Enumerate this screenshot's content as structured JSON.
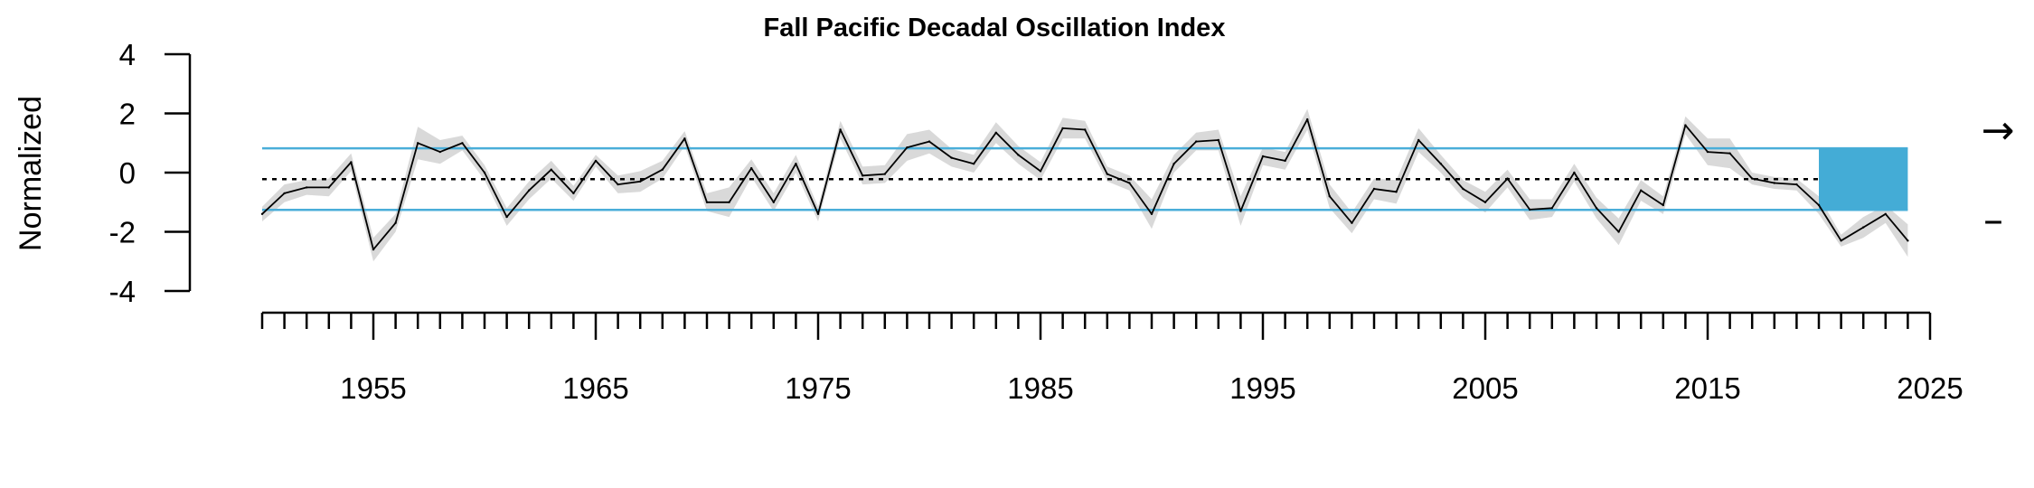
{
  "chart_data": {
    "type": "line",
    "title": "Fall Pacific Decadal Oscillation Index",
    "ylabel": "Normalized",
    "xlabel": "",
    "xlim": [
      1950,
      2025
    ],
    "ylim": [
      -4,
      4
    ],
    "y_ticks": [
      4,
      2,
      0,
      -2,
      -4
    ],
    "x_tick_labels": [
      1955,
      1965,
      1975,
      1985,
      1995,
      2005,
      2015,
      2025
    ],
    "mean": -0.22,
    "upper_sd": 0.82,
    "lower_sd": -1.26,
    "recent_period": [
      2020,
      2024
    ],
    "trend_symbol": "→",
    "mean_symbol": "–",
    "colors": {
      "line": "#000000",
      "band": "#d9d9d9",
      "sd_lines": "#4aaed9",
      "recent": "#44acd6",
      "mean_line": "#000000"
    },
    "series": [
      {
        "x": [
          1950,
          1951,
          1952,
          1953,
          1954,
          1955,
          1956,
          1957,
          1958,
          1959,
          1960,
          1961,
          1962,
          1963,
          1964,
          1965,
          1966,
          1967,
          1968,
          1969,
          1970,
          1971,
          1972,
          1973,
          1974,
          1975,
          1976,
          1977,
          1978,
          1979,
          1980,
          1981,
          1982,
          1983,
          1984,
          1985,
          1986,
          1987,
          1988,
          1989,
          1990,
          1991,
          1992,
          1993,
          1994,
          1995,
          1996,
          1997,
          1998,
          1999,
          2000,
          2001,
          2002,
          2003,
          2004,
          2005,
          2006,
          2007,
          2008,
          2009,
          2010,
          2011,
          2012,
          2013,
          2014,
          2015,
          2016,
          2017,
          2018,
          2019,
          2020,
          2021,
          2022,
          2023,
          2024
        ],
        "values": [
          -1.4,
          -0.7,
          -0.5,
          -0.5,
          0.35,
          -2.6,
          -1.7,
          1.0,
          0.7,
          1.0,
          0.0,
          -1.5,
          -0.6,
          0.1,
          -0.7,
          0.4,
          -0.4,
          -0.3,
          0.1,
          1.15,
          -1.0,
          -1.0,
          0.15,
          -1.0,
          0.3,
          -1.4,
          1.45,
          -0.1,
          -0.05,
          0.85,
          1.05,
          0.5,
          0.3,
          1.35,
          0.6,
          0.05,
          1.5,
          1.45,
          -0.05,
          -0.35,
          -1.4,
          0.3,
          1.05,
          1.1,
          -1.3,
          0.55,
          0.4,
          1.8,
          -0.8,
          -1.7,
          -0.55,
          -0.65,
          1.1,
          0.3,
          -0.55,
          -1.0,
          -0.2,
          -1.25,
          -1.2,
          0.0,
          -1.2,
          -2.0,
          -0.6,
          -1.1,
          1.6,
          0.7,
          0.65,
          -0.2,
          -0.35,
          -0.4,
          -1.1,
          -2.3,
          -1.85,
          -1.4,
          -2.3
        ],
        "errors": [
          0.25,
          0.3,
          0.25,
          0.3,
          0.3,
          0.4,
          0.3,
          0.55,
          0.4,
          0.25,
          0.25,
          0.3,
          0.3,
          0.3,
          0.25,
          0.2,
          0.3,
          0.35,
          0.3,
          0.25,
          0.3,
          0.5,
          0.3,
          0.3,
          0.3,
          0.25,
          0.3,
          0.3,
          0.3,
          0.45,
          0.4,
          0.3,
          0.3,
          0.35,
          0.3,
          0.3,
          0.35,
          0.3,
          0.25,
          0.25,
          0.5,
          0.3,
          0.3,
          0.35,
          0.5,
          0.3,
          0.3,
          0.35,
          0.4,
          0.35,
          0.35,
          0.4,
          0.4,
          0.3,
          0.3,
          0.35,
          0.3,
          0.35,
          0.3,
          0.3,
          0.35,
          0.45,
          0.35,
          0.3,
          0.3,
          0.45,
          0.5,
          0.2,
          0.2,
          0.2,
          0.3,
          0.2,
          0.35,
          0.3,
          0.55
        ]
      }
    ]
  }
}
